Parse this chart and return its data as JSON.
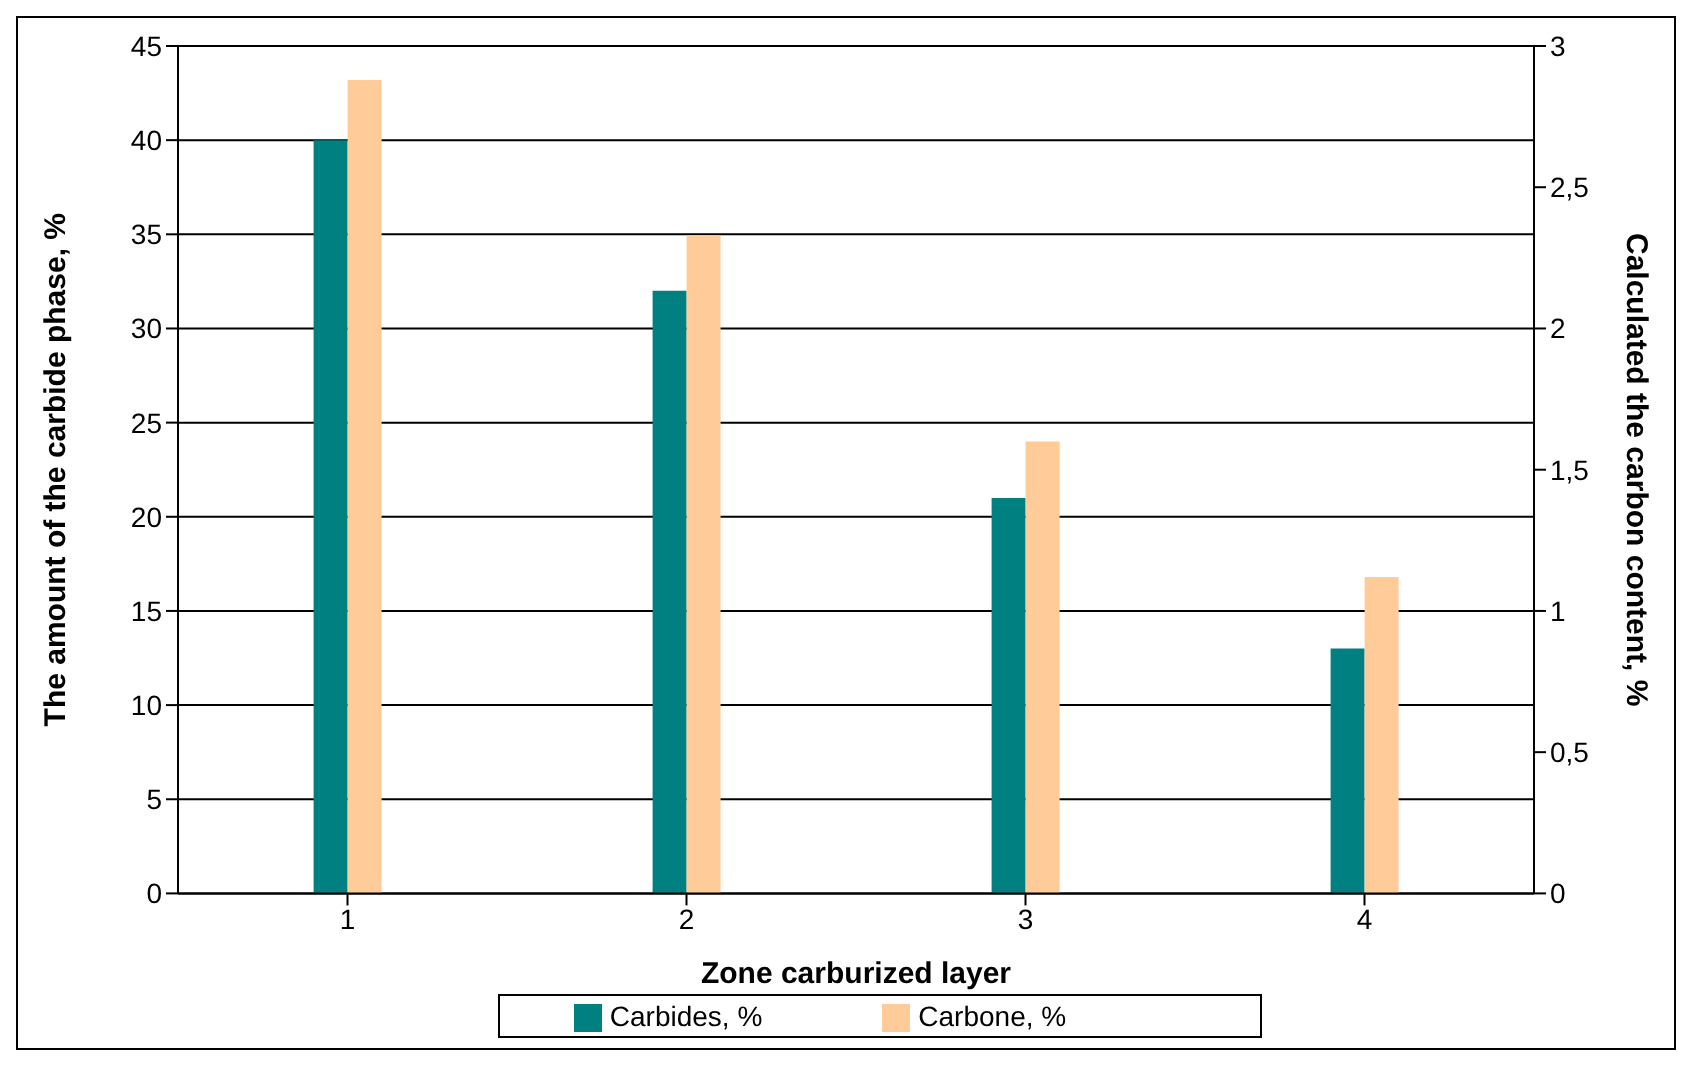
{
  "chart_data": {
    "type": "bar",
    "xlabel": "Zone carburized layer",
    "ylabel": "The amount of the carbide phase, %",
    "y2label": "Calculated the carbon content, %",
    "categories": [
      "1",
      "2",
      "3",
      "4"
    ],
    "series": [
      {
        "name": "Carbides, %",
        "color": "#008080",
        "values": [
          40,
          32,
          21,
          13
        ]
      },
      {
        "name": "Carbone, %",
        "color": "#ffcc99",
        "values": [
          2.88,
          2.33,
          1.6,
          1.12
        ],
        "axis": "y2"
      }
    ],
    "ylim": [
      0,
      45
    ],
    "yticks": [
      0,
      5,
      10,
      15,
      20,
      25,
      30,
      35,
      40,
      45
    ],
    "y2lim": [
      0,
      3
    ],
    "y2ticks": [
      0,
      {
        "value": 0.5,
        "label": "0,5"
      },
      1,
      {
        "value": 1.5,
        "label": "1,5"
      },
      2,
      {
        "value": 2.5,
        "label": "2,5"
      },
      3
    ],
    "grid": "y",
    "legend": "bottom"
  }
}
